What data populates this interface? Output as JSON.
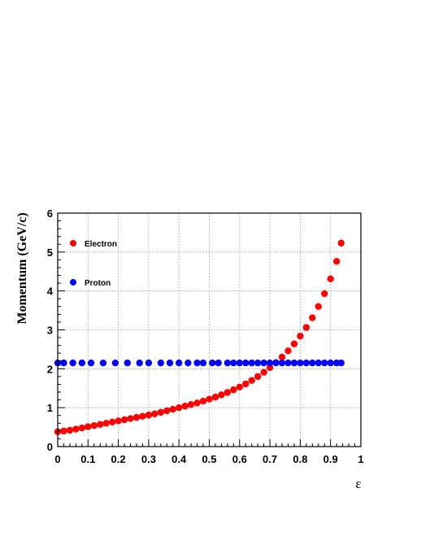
{
  "chart_data": {
    "type": "scatter",
    "xlabel": "ε",
    "ylabel": "Momentum (GeV/c)",
    "xlim": [
      0,
      1
    ],
    "ylim": [
      0,
      6
    ],
    "x_ticks": [
      "0",
      "0.1",
      "0.2",
      "0.3",
      "0.4",
      "0.5",
      "0.6",
      "0.7",
      "0.8",
      "0.9",
      "1"
    ],
    "y_ticks": [
      "0",
      "1",
      "2",
      "3",
      "4",
      "5",
      "6"
    ],
    "grid": true,
    "legend_position": "top-left",
    "series": [
      {
        "name": "Electron",
        "color": "#ff0000",
        "points": [
          [
            0.0,
            0.38
          ],
          [
            0.02,
            0.4
          ],
          [
            0.04,
            0.42
          ],
          [
            0.06,
            0.45
          ],
          [
            0.08,
            0.48
          ],
          [
            0.1,
            0.51
          ],
          [
            0.12,
            0.54
          ],
          [
            0.14,
            0.57
          ],
          [
            0.16,
            0.6
          ],
          [
            0.18,
            0.63
          ],
          [
            0.2,
            0.66
          ],
          [
            0.22,
            0.69
          ],
          [
            0.24,
            0.72
          ],
          [
            0.26,
            0.75
          ],
          [
            0.28,
            0.78
          ],
          [
            0.3,
            0.81
          ],
          [
            0.32,
            0.84
          ],
          [
            0.34,
            0.88
          ],
          [
            0.36,
            0.92
          ],
          [
            0.38,
            0.96
          ],
          [
            0.4,
            1.0
          ],
          [
            0.42,
            1.04
          ],
          [
            0.44,
            1.08
          ],
          [
            0.46,
            1.12
          ],
          [
            0.48,
            1.17
          ],
          [
            0.5,
            1.22
          ],
          [
            0.52,
            1.27
          ],
          [
            0.54,
            1.33
          ],
          [
            0.56,
            1.39
          ],
          [
            0.58,
            1.46
          ],
          [
            0.6,
            1.53
          ],
          [
            0.62,
            1.61
          ],
          [
            0.64,
            1.7
          ],
          [
            0.66,
            1.8
          ],
          [
            0.68,
            1.91
          ],
          [
            0.7,
            2.03
          ],
          [
            0.72,
            2.16
          ],
          [
            0.74,
            2.3
          ],
          [
            0.76,
            2.46
          ],
          [
            0.78,
            2.64
          ],
          [
            0.8,
            2.84
          ],
          [
            0.82,
            3.06
          ],
          [
            0.84,
            3.31
          ],
          [
            0.86,
            3.6
          ],
          [
            0.88,
            3.93
          ],
          [
            0.9,
            4.31
          ],
          [
            0.92,
            4.76
          ],
          [
            0.935,
            5.23
          ]
        ]
      },
      {
        "name": "Proton",
        "color": "#0000ff",
        "points": [
          [
            0.0,
            2.15
          ],
          [
            0.02,
            2.15
          ],
          [
            0.05,
            2.15
          ],
          [
            0.08,
            2.15
          ],
          [
            0.11,
            2.15
          ],
          [
            0.15,
            2.15
          ],
          [
            0.19,
            2.15
          ],
          [
            0.23,
            2.15
          ],
          [
            0.27,
            2.15
          ],
          [
            0.3,
            2.15
          ],
          [
            0.34,
            2.15
          ],
          [
            0.37,
            2.15
          ],
          [
            0.4,
            2.15
          ],
          [
            0.43,
            2.15
          ],
          [
            0.46,
            2.15
          ],
          [
            0.48,
            2.15
          ],
          [
            0.51,
            2.15
          ],
          [
            0.53,
            2.15
          ],
          [
            0.56,
            2.15
          ],
          [
            0.58,
            2.15
          ],
          [
            0.6,
            2.15
          ],
          [
            0.62,
            2.15
          ],
          [
            0.64,
            2.15
          ],
          [
            0.66,
            2.15
          ],
          [
            0.68,
            2.15
          ],
          [
            0.7,
            2.15
          ],
          [
            0.72,
            2.15
          ],
          [
            0.74,
            2.15
          ],
          [
            0.76,
            2.15
          ],
          [
            0.78,
            2.15
          ],
          [
            0.8,
            2.15
          ],
          [
            0.82,
            2.15
          ],
          [
            0.84,
            2.15
          ],
          [
            0.86,
            2.15
          ],
          [
            0.88,
            2.15
          ],
          [
            0.9,
            2.15
          ],
          [
            0.92,
            2.15
          ],
          [
            0.935,
            2.15
          ]
        ]
      }
    ]
  }
}
